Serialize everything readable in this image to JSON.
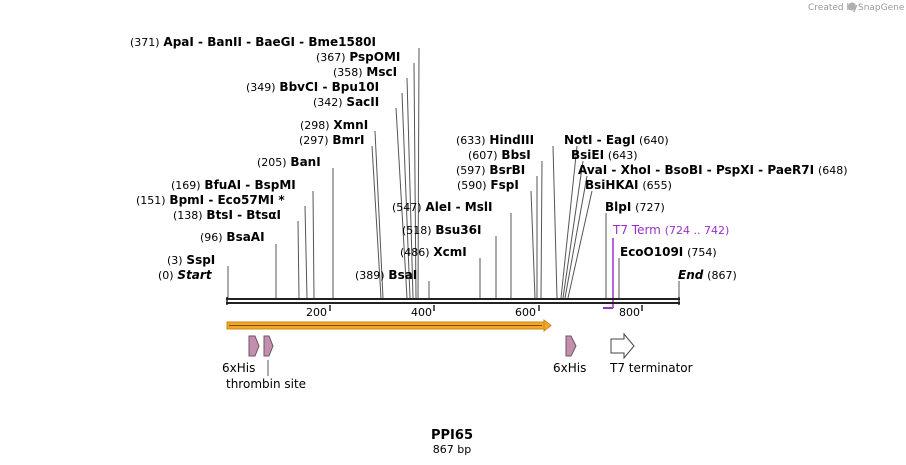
{
  "credit": {
    "text": "Created by",
    "brand": "SnapGene"
  },
  "plasmid": {
    "name": "PPI65",
    "length_label": "867 bp",
    "length": 867
  },
  "ends": {
    "start": {
      "label": "Start",
      "pos": "(0)"
    },
    "end": {
      "label": "End",
      "pos": "(867)"
    }
  },
  "sites": [
    {
      "pos": "(371)",
      "names": [
        "ApaI",
        "BanII",
        "BaeGI",
        "Bme1580I"
      ]
    },
    {
      "pos": "(367)",
      "names": [
        "PspOMI"
      ]
    },
    {
      "pos": "(358)",
      "names": [
        "MscI"
      ]
    },
    {
      "pos": "(349)",
      "names": [
        "BbvCI",
        "Bpu10I"
      ]
    },
    {
      "pos": "(342)",
      "names": [
        "SacII"
      ]
    },
    {
      "pos": "(298)",
      "names": [
        "XmnI"
      ]
    },
    {
      "pos": "(297)",
      "names": [
        "BmrI"
      ]
    },
    {
      "pos": "(205)",
      "names": [
        "BanI"
      ]
    },
    {
      "pos": "(169)",
      "names": [
        "BfuAI",
        "BspMI"
      ]
    },
    {
      "pos": "(151)",
      "names": [
        "BpmI",
        "Eco57MI *"
      ]
    },
    {
      "pos": "(138)",
      "names": [
        "BtsI",
        "BtsαI"
      ]
    },
    {
      "pos": "(96)",
      "names": [
        "BsaAI"
      ]
    },
    {
      "pos": "(3)",
      "names": [
        "SspI"
      ]
    },
    {
      "pos": "(389)",
      "names": [
        "BsaI"
      ]
    },
    {
      "pos": "(547)",
      "names": [
        "AleI",
        "MslI"
      ]
    },
    {
      "pos": "(518)",
      "names": [
        "Bsu36I"
      ]
    },
    {
      "pos": "(486)",
      "names": [
        "XcmI"
      ]
    },
    {
      "pos": "(633)",
      "names": [
        "HindIII"
      ]
    },
    {
      "pos": "(607)",
      "names": [
        "BbsI"
      ]
    },
    {
      "pos": "(597)",
      "names": [
        "BsrBI"
      ]
    },
    {
      "pos": "(590)",
      "names": [
        "FspI"
      ]
    },
    {
      "pos": "(640)",
      "names": [
        "NotI",
        "EagI"
      ]
    },
    {
      "pos": "(643)",
      "names": [
        "BsiEI"
      ]
    },
    {
      "pos": "(648)",
      "names": [
        "AvaI",
        "XhoI",
        "BsoBI",
        "PspXI",
        "PaeR7I"
      ]
    },
    {
      "pos": "(655)",
      "names": [
        "BsiHKAI"
      ]
    },
    {
      "pos": "(727)",
      "names": [
        "BlpI"
      ]
    },
    {
      "pos": "(754)",
      "names": [
        "EcoO109I"
      ]
    }
  ],
  "t7_term": {
    "label": "T7 Term",
    "range": "(724 .. 742)"
  },
  "ticks": [
    "200",
    "400",
    "600",
    "800"
  ],
  "features": {
    "his_tag_1": "6xHis",
    "thrombin": "thrombin site",
    "his_tag_2": "6xHis",
    "terminator": "T7 terminator"
  },
  "colors": {
    "orf_fill": "#f5a623",
    "orf_border": "#c98a1a",
    "tag_fill": "#c48fae",
    "tag_stroke": "#6d5560",
    "t7_color": "#9b30c8",
    "line_color": "#555555"
  }
}
